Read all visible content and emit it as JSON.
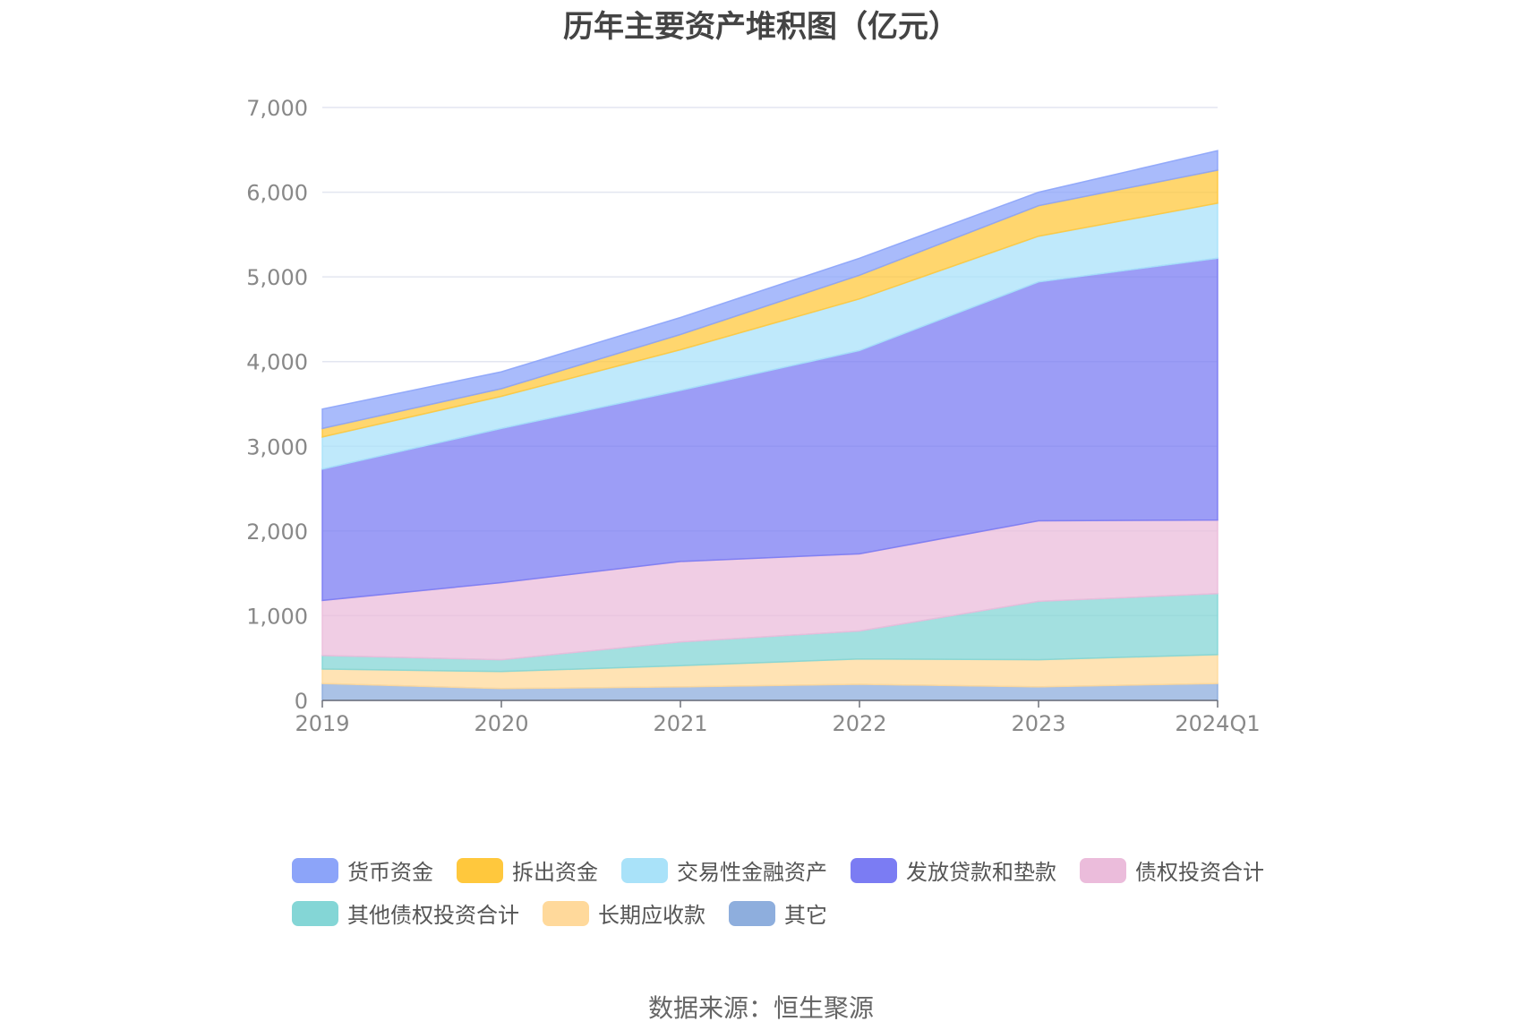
{
  "chart_data": {
    "type": "area",
    "stacked": true,
    "title": "历年主要资产堆积图（亿元）",
    "categories": [
      "2019",
      "2020",
      "2021",
      "2022",
      "2023",
      "2024Q1"
    ],
    "ylim": [
      0,
      7000
    ],
    "yticks": [
      "0",
      "1,000",
      "2,000",
      "3,000",
      "4,000",
      "5,000",
      "6,000",
      "7,000"
    ],
    "ytick_values": [
      0,
      1000,
      2000,
      3000,
      4000,
      5000,
      6000,
      7000
    ],
    "grid": true,
    "legend_position": "bottom",
    "series": [
      {
        "name": "其它",
        "color": "#8EAEDD",
        "values": [
          200,
          140,
          160,
          190,
          160,
          200
        ]
      },
      {
        "name": "长期应收款",
        "color": "#FFD99B",
        "values": [
          170,
          200,
          250,
          300,
          320,
          340
        ]
      },
      {
        "name": "其他债权投资合计",
        "color": "#84D6D6",
        "values": [
          160,
          140,
          280,
          330,
          690,
          720
        ]
      },
      {
        "name": "债权投资合计",
        "color": "#EBBCDB",
        "values": [
          650,
          910,
          950,
          910,
          950,
          870
        ]
      },
      {
        "name": "发放贷款和垫款",
        "color": "#7B7CF3",
        "values": [
          1550,
          1820,
          2020,
          2400,
          2820,
          3090
        ]
      },
      {
        "name": "交易性金融资产",
        "color": "#A9E2F9",
        "values": [
          380,
          380,
          480,
          610,
          540,
          650
        ]
      },
      {
        "name": "拆出资金",
        "color": "#FFC83D",
        "values": [
          100,
          90,
          180,
          280,
          360,
          390
        ]
      },
      {
        "name": "货币资金",
        "color": "#8CA4F9",
        "values": [
          230,
          200,
          200,
          200,
          160,
          230
        ]
      }
    ]
  },
  "legend_order": [
    "货币资金",
    "拆出资金",
    "交易性金融资产",
    "发放贷款和垫款",
    "债权投资合计",
    "其他债权投资合计",
    "长期应收款",
    "其它"
  ],
  "source_text": "数据来源：恒生聚源"
}
